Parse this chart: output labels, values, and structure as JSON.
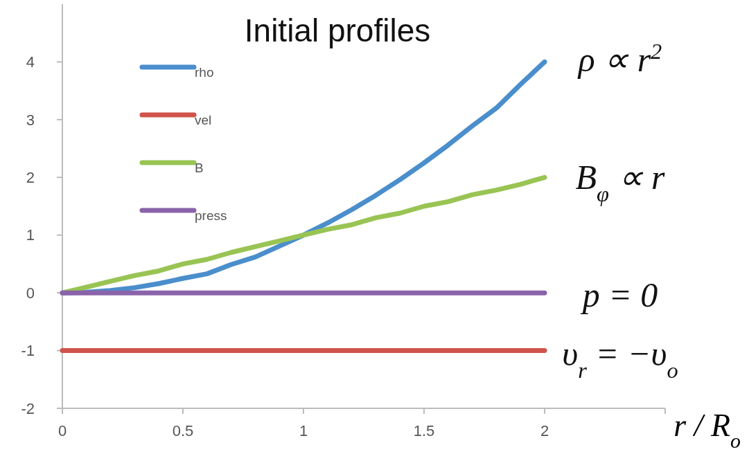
{
  "chart_data": {
    "type": "line",
    "title": "Initial profiles",
    "xlabel": "r / R$_{o}$",
    "x": [
      0,
      0.1,
      0.2,
      0.3,
      0.4,
      0.5,
      0.6,
      0.7,
      0.8,
      0.9,
      1,
      1.1,
      1.2,
      1.3,
      1.4,
      1.5,
      1.6,
      1.7,
      1.8,
      1.9,
      2
    ],
    "series": [
      {
        "name": "rho",
        "color": "#4a8ecc",
        "values": [
          0,
          0.01,
          0.04,
          0.09,
          0.16,
          0.25,
          0.33,
          0.49,
          0.62,
          0.81,
          1,
          1.21,
          1.44,
          1.69,
          1.96,
          2.25,
          2.56,
          2.89,
          3.2,
          3.61,
          4
        ]
      },
      {
        "name": "vel",
        "color": "#d0534b",
        "values": [
          -1,
          -1,
          -1,
          -1,
          -1,
          -1,
          -1,
          -1,
          -1,
          -1,
          -1,
          -1,
          -1,
          -1,
          -1,
          -1,
          -1,
          -1,
          -1,
          -1,
          -1
        ]
      },
      {
        "name": "B",
        "color": "#99c454",
        "values": [
          0,
          0.1,
          0.2,
          0.3,
          0.38,
          0.5,
          0.58,
          0.7,
          0.8,
          0.9,
          1,
          1.1,
          1.18,
          1.3,
          1.38,
          1.5,
          1.58,
          1.7,
          1.78,
          1.88,
          2
        ]
      },
      {
        "name": "press",
        "color": "#8a63aa",
        "values": [
          0,
          0,
          0,
          0,
          0,
          0,
          0,
          0,
          0,
          0,
          0,
          0,
          0,
          0,
          0,
          0,
          0,
          0,
          0,
          0,
          0
        ]
      }
    ],
    "annotations": [
      "ρ ∝ r$^{2}$",
      "B$_{φ}$ ∝ r",
      "p = 0",
      "υ$_{r}$ = −υ$_{o}$"
    ],
    "xlim": [
      0,
      2.5
    ],
    "xticks": [
      0,
      0.5,
      1,
      1.5,
      2,
      {
        "value": 2.5,
        "label": null
      }
    ],
    "ylim": [
      -2,
      5
    ],
    "yticks": [
      -2,
      -1,
      0,
      1,
      2,
      3,
      4
    ],
    "grid": false,
    "legend": "top left",
    "marker": "none",
    "line_style": "solid"
  }
}
